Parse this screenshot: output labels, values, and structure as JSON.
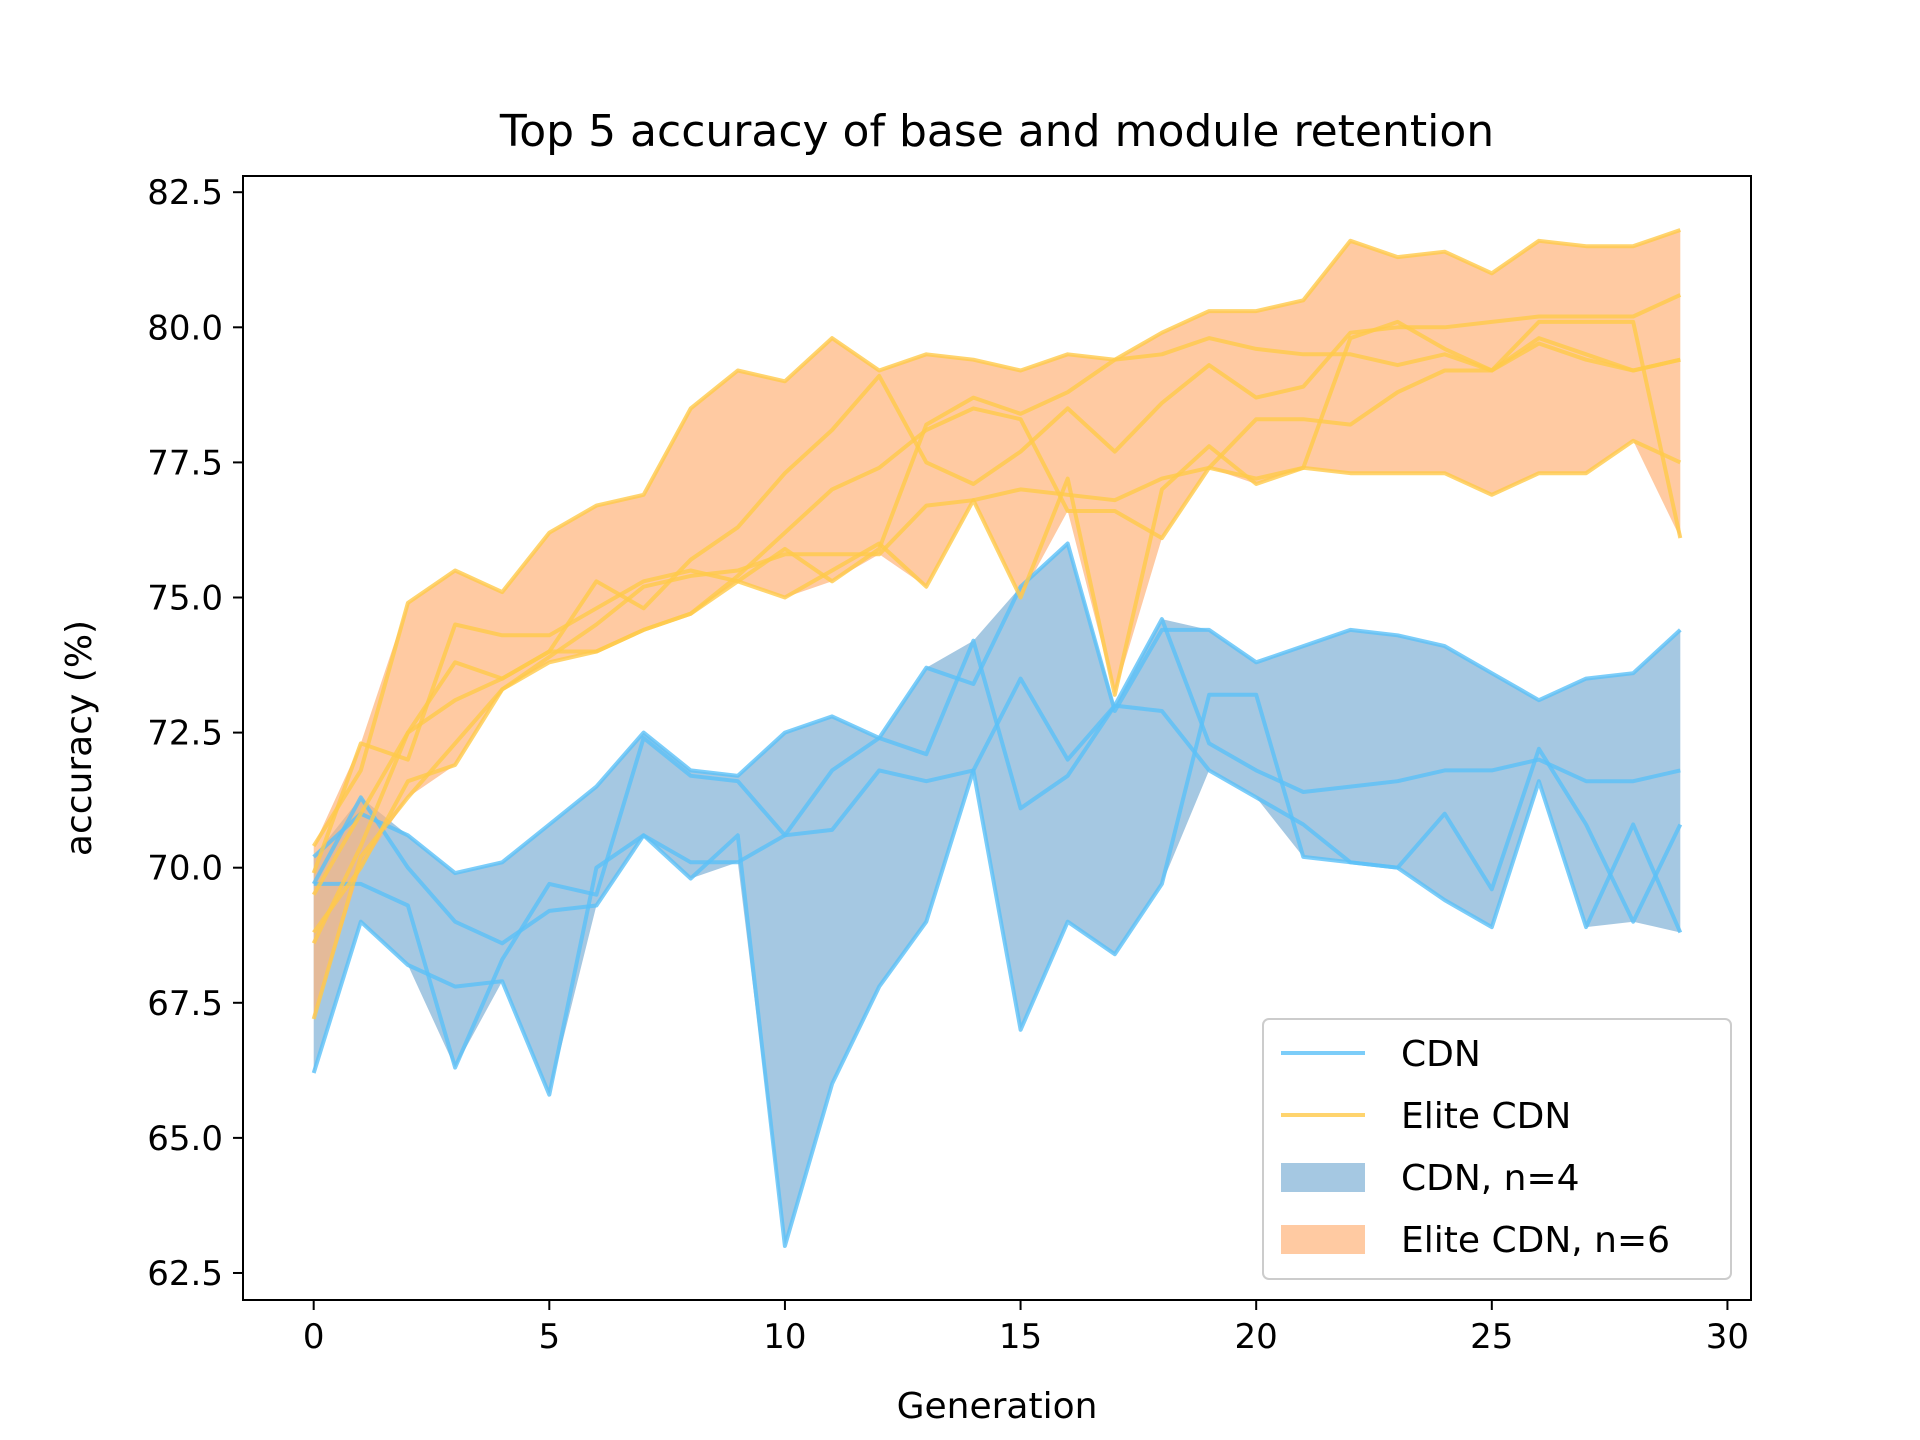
{
  "chart_data": {
    "type": "line",
    "title": "Top 5 accuracy of base and module retention",
    "xlabel": "Generation",
    "ylabel": "accuracy (%)",
    "xlim": [
      -1.5,
      30.5
    ],
    "ylim": [
      62.0,
      82.8
    ],
    "xticks": [
      0,
      5,
      10,
      15,
      20,
      25,
      30
    ],
    "yticks": [
      62.5,
      65.0,
      67.5,
      70.0,
      72.5,
      75.0,
      77.5,
      80.0,
      82.5
    ],
    "grid": false,
    "legend_position": "lower-right",
    "legend": [
      {
        "label": "CDN",
        "kind": "line",
        "color": "#5bc0f8"
      },
      {
        "label": "Elite CDN",
        "kind": "line",
        "color": "#ffc94a"
      },
      {
        "label": "CDN, n=4",
        "kind": "band",
        "color": "#7fb0d5"
      },
      {
        "label": "Elite CDN, n=6",
        "kind": "band",
        "color": "#ffb37a"
      }
    ],
    "x": [
      0,
      1,
      2,
      3,
      4,
      5,
      6,
      7,
      8,
      9,
      10,
      11,
      12,
      13,
      14,
      15,
      16,
      17,
      18,
      19,
      20,
      21,
      22,
      23,
      24,
      25,
      26,
      27,
      28,
      29
    ],
    "groups": [
      {
        "name": "CDN",
        "line_color": "#5bc0f8",
        "band_color": "#7fb0d5",
        "series": [
          {
            "values": [
              70.2,
              71.0,
              70.6,
              69.9,
              70.1,
              70.8,
              71.5,
              72.5,
              71.8,
              71.7,
              72.5,
              72.8,
              72.4,
              73.7,
              73.4,
              75.2,
              76.0,
              72.9,
              74.4,
              74.4,
              73.8,
              74.1,
              74.4,
              74.3,
              74.1,
              73.6,
              73.1,
              73.5,
              73.6,
              74.4
            ]
          },
          {
            "values": [
              69.7,
              71.3,
              70.0,
              69.0,
              68.6,
              69.2,
              69.3,
              70.6,
              70.1,
              70.1,
              70.6,
              71.8,
              72.4,
              72.1,
              74.2,
              71.1,
              71.7,
              73.0,
              72.9,
              71.8,
              71.3,
              70.8,
              70.1,
              70.0,
              71.0,
              69.6,
              72.2,
              70.8,
              69.0,
              70.8
            ]
          },
          {
            "values": [
              69.7,
              69.7,
              69.3,
              66.3,
              68.3,
              69.7,
              69.5,
              72.4,
              71.7,
              71.6,
              70.6,
              70.7,
              71.8,
              71.6,
              71.8,
              67.0,
              69.0,
              68.4,
              69.7,
              73.2,
              73.2,
              70.2,
              70.1,
              70.0,
              69.4,
              68.9,
              71.6,
              68.9,
              70.8,
              68.8
            ]
          },
          {
            "values": [
              66.2,
              69.0,
              68.2,
              67.8,
              67.9,
              65.8,
              70.0,
              70.6,
              69.8,
              70.6,
              63.0,
              66.0,
              67.8,
              69.0,
              71.8,
              73.5,
              72.0,
              73.0,
              74.6,
              72.3,
              71.8,
              71.4,
              71.5,
              71.6,
              71.8,
              71.8,
              72.0,
              71.6,
              71.6,
              71.8
            ]
          }
        ]
      },
      {
        "name": "Elite CDN",
        "line_color": "#ffc94a",
        "band_color": "#ffb37a",
        "series": [
          {
            "values": [
              70.4,
              71.8,
              74.9,
              75.5,
              75.1,
              76.2,
              76.7,
              76.9,
              78.5,
              79.2,
              79.0,
              79.8,
              79.2,
              79.5,
              79.4,
              79.2,
              79.5,
              79.4,
              79.9,
              80.3,
              80.3,
              80.5,
              81.6,
              81.3,
              81.4,
              81.0,
              81.6,
              81.5,
              81.5,
              81.8
            ]
          },
          {
            "values": [
              69.9,
              72.3,
              72.0,
              74.5,
              74.3,
              74.3,
              74.8,
              75.3,
              75.5,
              75.3,
              75.0,
              75.5,
              76.0,
              75.2,
              76.8,
              75.0,
              77.2,
              73.2,
              77.0,
              77.8,
              77.1,
              77.4,
              79.8,
              80.1,
              79.6,
              79.2,
              80.1,
              80.1,
              80.1,
              76.1
            ]
          },
          {
            "values": [
              69.5,
              71.0,
              72.5,
              73.8,
              73.5,
              74.0,
              75.3,
              74.8,
              75.7,
              76.3,
              77.3,
              78.1,
              79.1,
              77.5,
              77.1,
              77.7,
              78.5,
              77.7,
              78.6,
              79.3,
              78.7,
              78.9,
              79.9,
              80.0,
              80.0,
              80.1,
              80.2,
              80.2,
              80.2,
              80.6
            ]
          },
          {
            "values": [
              68.8,
              70.0,
              71.6,
              71.9,
              73.3,
              73.9,
              74.5,
              75.2,
              75.4,
              75.5,
              75.8,
              75.8,
              75.8,
              76.7,
              76.8,
              77.0,
              76.9,
              76.8,
              77.2,
              77.4,
              77.2,
              77.4,
              77.3,
              77.3,
              77.3,
              76.9,
              77.3,
              77.3,
              77.9,
              77.5
            ]
          },
          {
            "values": [
              68.6,
              70.4,
              72.5,
              73.1,
              73.5,
              74.0,
              74.0,
              74.4,
              74.7,
              75.4,
              76.2,
              77.0,
              77.4,
              78.1,
              78.5,
              78.3,
              76.6,
              76.6,
              76.1,
              77.4,
              78.3,
              78.3,
              78.2,
              78.8,
              79.2,
              79.2,
              79.8,
              79.5,
              79.2,
              79.4
            ]
          },
          {
            "values": [
              67.2,
              70.2,
              71.3,
              72.3,
              73.3,
              73.8,
              74.0,
              74.4,
              74.7,
              75.3,
              75.9,
              75.3,
              75.9,
              78.2,
              78.7,
              78.4,
              78.8,
              79.4,
              79.5,
              79.8,
              79.6,
              79.5,
              79.5,
              79.3,
              79.5,
              79.2,
              79.7,
              79.4,
              79.2,
              79.4
            ]
          }
        ]
      }
    ]
  }
}
